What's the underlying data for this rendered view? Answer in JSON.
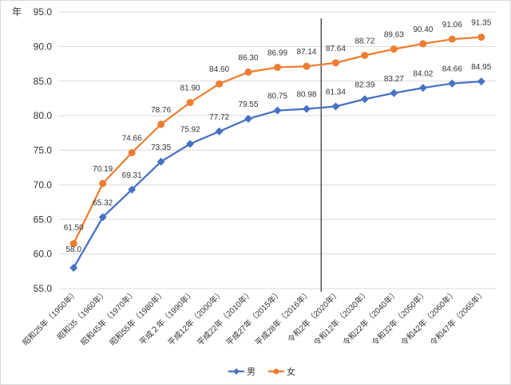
{
  "chart_data": {
    "type": "line",
    "ylabel": "年",
    "ylim": [
      55.0,
      95.0
    ],
    "ytick_step": 5.0,
    "ytick_labels": [
      "55.0",
      "60.0",
      "65.0",
      "70.0",
      "75.0",
      "80.0",
      "85.0",
      "90.0",
      "95.0"
    ],
    "grid": true,
    "legend_position": "bottom",
    "divider_after_category": "平成28年（2016年）",
    "categories": [
      "昭和25年（1950年）",
      "昭和35（1960年）",
      "昭和45年（1970年）",
      "昭和55年（1980年）",
      "平成２年（1990年）",
      "平成12年（2000年）",
      "平成22年（2010年）",
      "平成27年（2015年）",
      "平成28年（2016年）",
      "令和2年（2020年）",
      "令和12年（2030年）",
      "令和22年（2040年）",
      "令和32年（2050年）",
      "令和42年（2060年）",
      "令和47年（2065年）"
    ],
    "series": [
      {
        "name": "男",
        "color": "#4472c4",
        "marker": "diamond",
        "values": [
          58.0,
          65.32,
          69.31,
          73.35,
          75.92,
          77.72,
          79.55,
          80.75,
          80.98,
          81.34,
          82.39,
          83.27,
          84.02,
          84.66,
          84.95
        ],
        "labels": [
          "58.0",
          "65.32",
          "69.31",
          "73.35",
          "75.92",
          "77.72",
          "79.55",
          "80.75",
          "80.98",
          "81.34",
          "82.39",
          "83.27",
          "84.02",
          "84.66",
          "84.95"
        ]
      },
      {
        "name": "女",
        "color": "#ed7d31",
        "marker": "circle",
        "values": [
          61.5,
          70.19,
          74.66,
          78.76,
          81.9,
          84.6,
          86.3,
          86.99,
          87.14,
          87.64,
          88.72,
          89.63,
          90.4,
          91.06,
          91.35
        ],
        "labels": [
          "61.50",
          "70.19",
          "74.66",
          "78.76",
          "81.90",
          "84.60",
          "86.30",
          "86.99",
          "87.14",
          "87.64",
          "88.72",
          "89.63",
          "90.40",
          "91.06",
          "91.35"
        ]
      }
    ]
  }
}
